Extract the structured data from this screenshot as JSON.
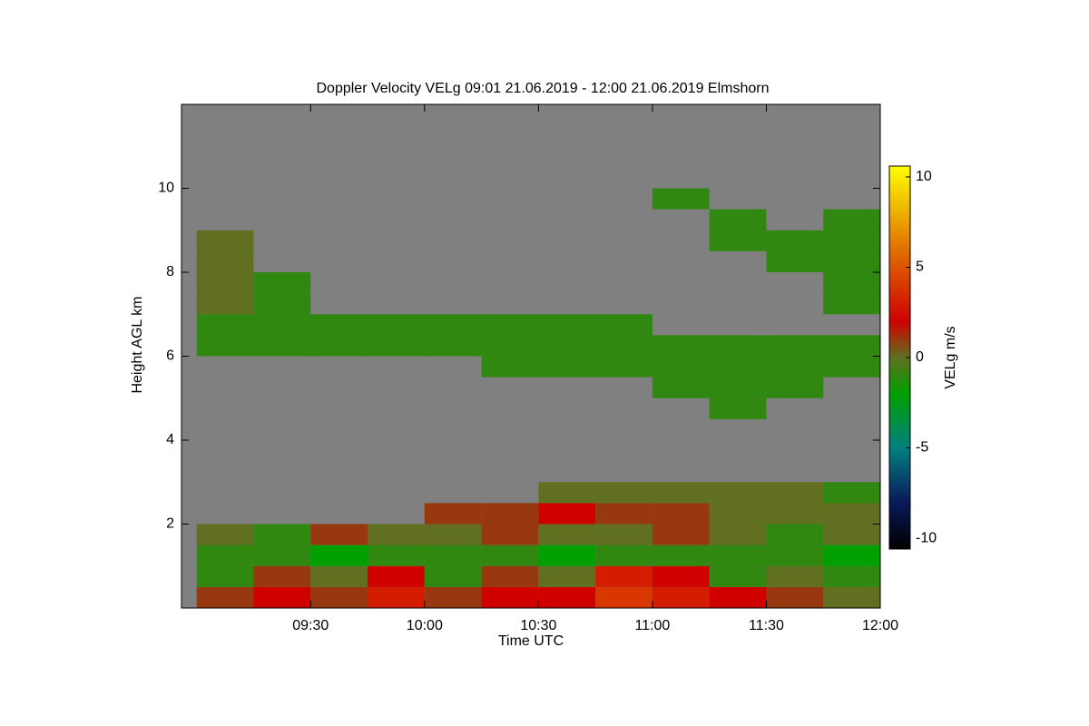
{
  "chart_data": {
    "type": "heatmap",
    "title": "Doppler Velocity VELg   09:01 21.06.2019 - 12:00 21.06.2019 Elmshorn",
    "xlabel": "Time UTC",
    "ylabel": "Height AGL km",
    "colorbar_label": "VELg m/s",
    "xlim": [
      536,
      720
    ],
    "ylim": [
      0,
      12
    ],
    "xticks": [
      {
        "value": 570,
        "label": "09:30"
      },
      {
        "value": 600,
        "label": "10:00"
      },
      {
        "value": 630,
        "label": "10:30"
      },
      {
        "value": 660,
        "label": "11:00"
      },
      {
        "value": 690,
        "label": "11:30"
      },
      {
        "value": 720,
        "label": "12:00"
      }
    ],
    "yticks": [
      2,
      4,
      6,
      8,
      10
    ],
    "clim": [
      -10.6,
      10.6
    ],
    "cticks": [
      -10,
      -5,
      0,
      5,
      10
    ],
    "colormap": [
      [
        -10.6,
        "#000000"
      ],
      [
        -8,
        "#0a1a5a"
      ],
      [
        -5,
        "#008080"
      ],
      [
        -2,
        "#00a000"
      ],
      [
        0,
        "#607020"
      ],
      [
        2,
        "#d00000"
      ],
      [
        6,
        "#e07000"
      ],
      [
        10.6,
        "#ffff00"
      ]
    ],
    "background": "#808080",
    "x_bins": [
      540,
      555,
      570,
      585,
      600,
      615,
      630,
      645,
      660,
      675,
      690,
      705,
      720
    ],
    "y_bins": [
      0,
      0.5,
      1,
      1.5,
      2,
      2.5,
      3,
      3.5,
      4,
      4.5,
      5,
      5.5,
      6,
      6.5,
      7,
      7.5,
      8,
      8.5,
      9,
      9.5,
      10,
      10.5,
      11,
      11.5,
      12
    ],
    "values": [
      [
        1,
        2,
        1,
        3,
        1,
        2,
        2,
        4,
        3,
        2,
        1,
        0
      ],
      [
        -1,
        1,
        0,
        2,
        -1,
        1,
        0,
        3,
        2,
        -1,
        0,
        -1
      ],
      [
        -1,
        -1,
        -2,
        -1,
        -1,
        -1,
        -2,
        -1,
        -1,
        -1,
        -1,
        -2
      ],
      [
        0,
        -1,
        1,
        0,
        0,
        1,
        0,
        0,
        1,
        0,
        -1,
        0
      ],
      [
        null,
        null,
        null,
        null,
        1,
        1,
        2,
        1,
        1,
        0,
        0,
        0
      ],
      [
        null,
        null,
        null,
        null,
        null,
        null,
        0,
        0,
        0,
        0,
        0,
        -1
      ],
      [
        null,
        null,
        null,
        null,
        null,
        null,
        null,
        null,
        null,
        null,
        null,
        null
      ],
      [
        null,
        null,
        null,
        null,
        null,
        null,
        null,
        null,
        null,
        null,
        null,
        null
      ],
      [
        null,
        null,
        null,
        null,
        null,
        null,
        null,
        null,
        null,
        null,
        null,
        null
      ],
      [
        null,
        null,
        null,
        null,
        null,
        null,
        null,
        null,
        null,
        -1,
        null,
        null
      ],
      [
        null,
        null,
        null,
        null,
        null,
        null,
        null,
        null,
        -1,
        -1,
        -1,
        null
      ],
      [
        null,
        null,
        null,
        null,
        null,
        -1,
        -1,
        -1,
        -1,
        -1,
        -1,
        -1
      ],
      [
        -1,
        -1,
        -1,
        -1,
        -1,
        -1,
        -1,
        -1,
        -1,
        -1,
        -1,
        -1
      ],
      [
        -1,
        -1,
        -1,
        -1,
        -1,
        -1,
        -1,
        -1,
        null,
        null,
        null,
        null
      ],
      [
        0,
        -1,
        null,
        null,
        null,
        null,
        null,
        null,
        null,
        null,
        null,
        -1
      ],
      [
        0,
        -1,
        null,
        null,
        null,
        null,
        null,
        null,
        null,
        null,
        null,
        -1
      ],
      [
        0,
        null,
        null,
        null,
        null,
        null,
        null,
        null,
        null,
        null,
        -1,
        -1
      ],
      [
        0,
        null,
        null,
        null,
        null,
        null,
        null,
        null,
        null,
        -1,
        -1,
        -1
      ],
      [
        null,
        null,
        null,
        null,
        null,
        null,
        null,
        null,
        null,
        -1,
        null,
        -1
      ],
      [
        null,
        null,
        null,
        null,
        null,
        null,
        null,
        null,
        -1,
        null,
        null,
        null
      ],
      [
        null,
        null,
        null,
        null,
        null,
        null,
        null,
        null,
        null,
        null,
        null,
        null
      ],
      [
        null,
        null,
        null,
        null,
        null,
        null,
        null,
        null,
        null,
        null,
        null,
        null
      ],
      [
        null,
        null,
        null,
        null,
        null,
        null,
        null,
        null,
        null,
        null,
        null,
        null
      ],
      [
        null,
        null,
        null,
        null,
        null,
        null,
        null,
        null,
        null,
        null,
        null,
        null
      ]
    ]
  }
}
